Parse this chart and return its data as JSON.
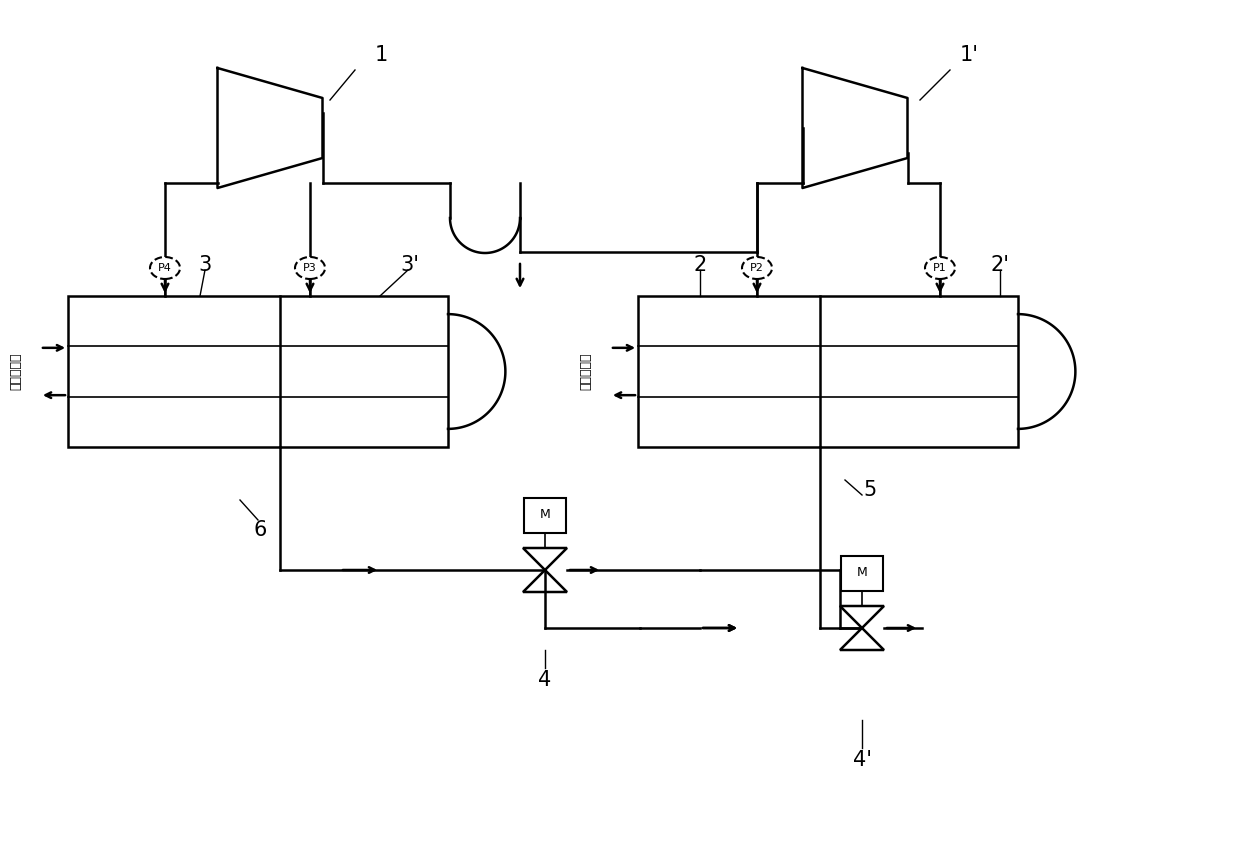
{
  "bg_color": "#ffffff",
  "line_color": "#000000",
  "line_width": 1.5,
  "fig_width": 12.4,
  "fig_height": 8.65,
  "dpi": 100,
  "labels": {
    "comp1": "1",
    "comp1p": "1'",
    "heat1": "3",
    "heat1p": "3'",
    "heat2": "2",
    "heat2p": "2'",
    "valve1": "4",
    "valve1p": "4'",
    "pipe1": "5",
    "pipe2": "6",
    "water_left": "水室入口侧",
    "water_right": "水室入口侧",
    "p1": "P1",
    "p2": "P2",
    "p3": "P3",
    "p4": "P4"
  }
}
